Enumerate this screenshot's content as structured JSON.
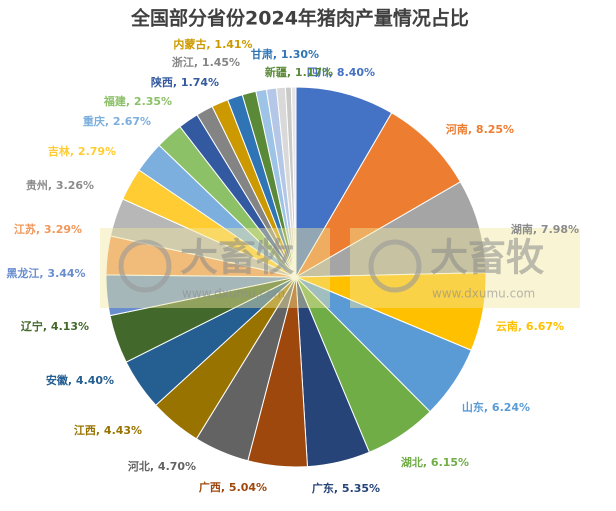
{
  "chart_data": {
    "type": "pie",
    "title": "全国部分省份2024年猪肉产量情况占比",
    "watermark": [
      "大畜牧",
      "www.dxumu.com"
    ],
    "categories": [
      "四川",
      "河南",
      "湖南",
      "云南",
      "山东",
      "湖北",
      "广东",
      "广西",
      "河北",
      "江西",
      "安徽",
      "辽宁",
      "黑龙江",
      "江苏",
      "贵州",
      "吉林",
      "重庆",
      "福建",
      "陕西",
      "浙江",
      "内蒙古",
      "甘肃",
      "新疆",
      null,
      null,
      null,
      null,
      null
    ],
    "values": [
      8.4,
      8.25,
      7.98,
      6.67,
      6.24,
      6.15,
      5.35,
      5.04,
      4.7,
      4.43,
      4.4,
      4.13,
      3.44,
      3.29,
      3.26,
      2.79,
      2.67,
      2.35,
      1.74,
      1.45,
      1.41,
      1.3,
      1.17,
      0.9,
      0.85,
      0.75,
      0.5,
      0.39
    ],
    "value_labels": [
      "四川, 8.40%",
      "河南, 8.25%",
      "湖南, 7.98%",
      "云南, 6.67%",
      "山东, 6.24%",
      "湖北, 6.15%",
      "广东, 5.35%",
      "广西, 5.04%",
      "河北, 4.70%",
      "江西, 4.43%",
      "安徽, 4.40%",
      "辽宁, 4.13%",
      "黑龙江, 3.44%",
      "江苏, 3.29%",
      "贵州, 3.26%",
      "吉林, 2.79%",
      "重庆, 2.67%",
      "福建, 2.35%",
      "陕西, 1.74%",
      "浙江, 1.45%",
      "内蒙古, 1.41%",
      "甘肃, 1.30%",
      "新疆, 1.17%",
      null,
      null,
      null,
      null,
      null
    ],
    "colors": [
      "#4472c4",
      "#ed7d31",
      "#a5a5a5",
      "#ffc000",
      "#5b9bd5",
      "#70ad47",
      "#264478",
      "#9e480e",
      "#636363",
      "#997300",
      "#255e91",
      "#43682b",
      "#698ed0",
      "#f1975a",
      "#b7b7b7",
      "#ffcd33",
      "#7cafdd",
      "#8cc168",
      "#335aa1",
      "#848484",
      "#cc9a00",
      "#2f75b5",
      "#5a8a38",
      "#9dc3e6",
      "#b4c7e7",
      "#d9d9d9",
      "#c9c9c9",
      "#e7e6e6"
    ]
  }
}
